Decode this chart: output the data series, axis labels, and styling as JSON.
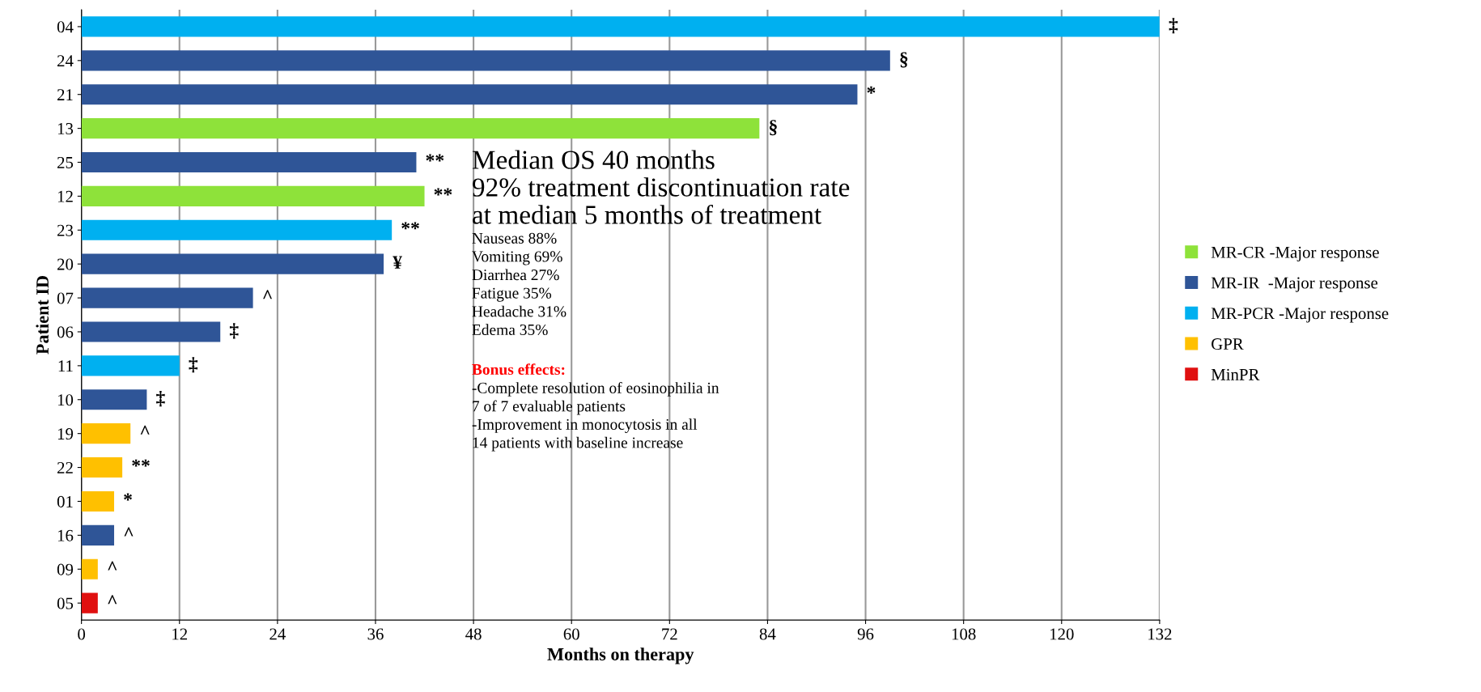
{
  "chart_data": {
    "type": "bar",
    "orientation": "horizontal",
    "xlabel": "Months on therapy",
    "ylabel": "Patient ID",
    "categories": [
      "04",
      "24",
      "21",
      "13",
      "25",
      "12",
      "23",
      "20",
      "07",
      "06",
      "11",
      "10",
      "19",
      "22",
      "01",
      "16",
      "09",
      "05"
    ],
    "series": [
      {
        "name": "MR-CR -Major response",
        "color": "#8ee23a",
        "values": [
          null,
          null,
          null,
          83,
          null,
          42,
          null,
          null,
          null,
          null,
          null,
          null,
          null,
          null,
          null,
          null,
          null,
          null
        ],
        "value_labels": [
          null,
          null,
          null,
          "§",
          null,
          "**",
          null,
          null,
          null,
          null,
          null,
          null,
          null,
          null,
          null,
          null,
          null,
          null
        ]
      },
      {
        "name": "MR-IR  -Major response",
        "color": "#2f5597",
        "values": [
          null,
          99,
          95,
          null,
          41,
          null,
          null,
          37,
          21,
          17,
          null,
          8,
          null,
          null,
          null,
          4,
          null,
          null
        ],
        "value_labels": [
          null,
          "§",
          "*",
          null,
          "**",
          null,
          null,
          "¥",
          "^",
          "‡",
          null,
          "‡",
          null,
          null,
          null,
          "^",
          null,
          null
        ]
      },
      {
        "name": "MR-PCR -Major response",
        "color": "#00b0f0",
        "values": [
          132,
          null,
          null,
          null,
          null,
          null,
          38,
          null,
          null,
          null,
          12,
          null,
          null,
          null,
          null,
          null,
          null,
          null
        ],
        "value_labels": [
          "‡",
          null,
          null,
          null,
          null,
          null,
          "**",
          null,
          null,
          null,
          "‡",
          null,
          null,
          null,
          null,
          null,
          null,
          null
        ]
      },
      {
        "name": "GPR",
        "color": "#ffc000",
        "values": [
          null,
          null,
          null,
          null,
          null,
          null,
          null,
          null,
          null,
          null,
          null,
          null,
          6,
          5,
          4,
          null,
          2,
          null
        ],
        "value_labels": [
          null,
          null,
          null,
          null,
          null,
          null,
          null,
          null,
          null,
          null,
          null,
          null,
          "^",
          "**",
          "*",
          null,
          "^",
          null
        ]
      },
      {
        "name": "MinPR",
        "color": "#e01010",
        "values": [
          null,
          null,
          null,
          null,
          null,
          null,
          null,
          null,
          null,
          null,
          null,
          null,
          null,
          null,
          null,
          null,
          null,
          2
        ],
        "value_labels": [
          null,
          null,
          null,
          null,
          null,
          null,
          null,
          null,
          null,
          null,
          null,
          null,
          null,
          null,
          null,
          null,
          null,
          "^"
        ]
      }
    ],
    "xlim": [
      0,
      132
    ],
    "xticks": [
      0,
      12,
      24,
      36,
      48,
      60,
      72,
      84,
      96,
      108,
      120,
      132
    ],
    "grid": "x",
    "legend": "right",
    "annotations": [
      "Median OS 40 months",
      "92% treatment discontinuation rate",
      "at median 5 months of treatment",
      "Nauseas 88%",
      "Vomiting 69%",
      "Diarrhea 27%",
      "Fatigue 35%",
      "Headache 31%",
      "Edema 35%",
      "Bonus effects:",
      "-Complete resolution of eosinophilia in",
      "7 of 7 evaluable patients",
      "-Improvement in monocytosis in all",
      "14 patients with baseline increase"
    ]
  }
}
